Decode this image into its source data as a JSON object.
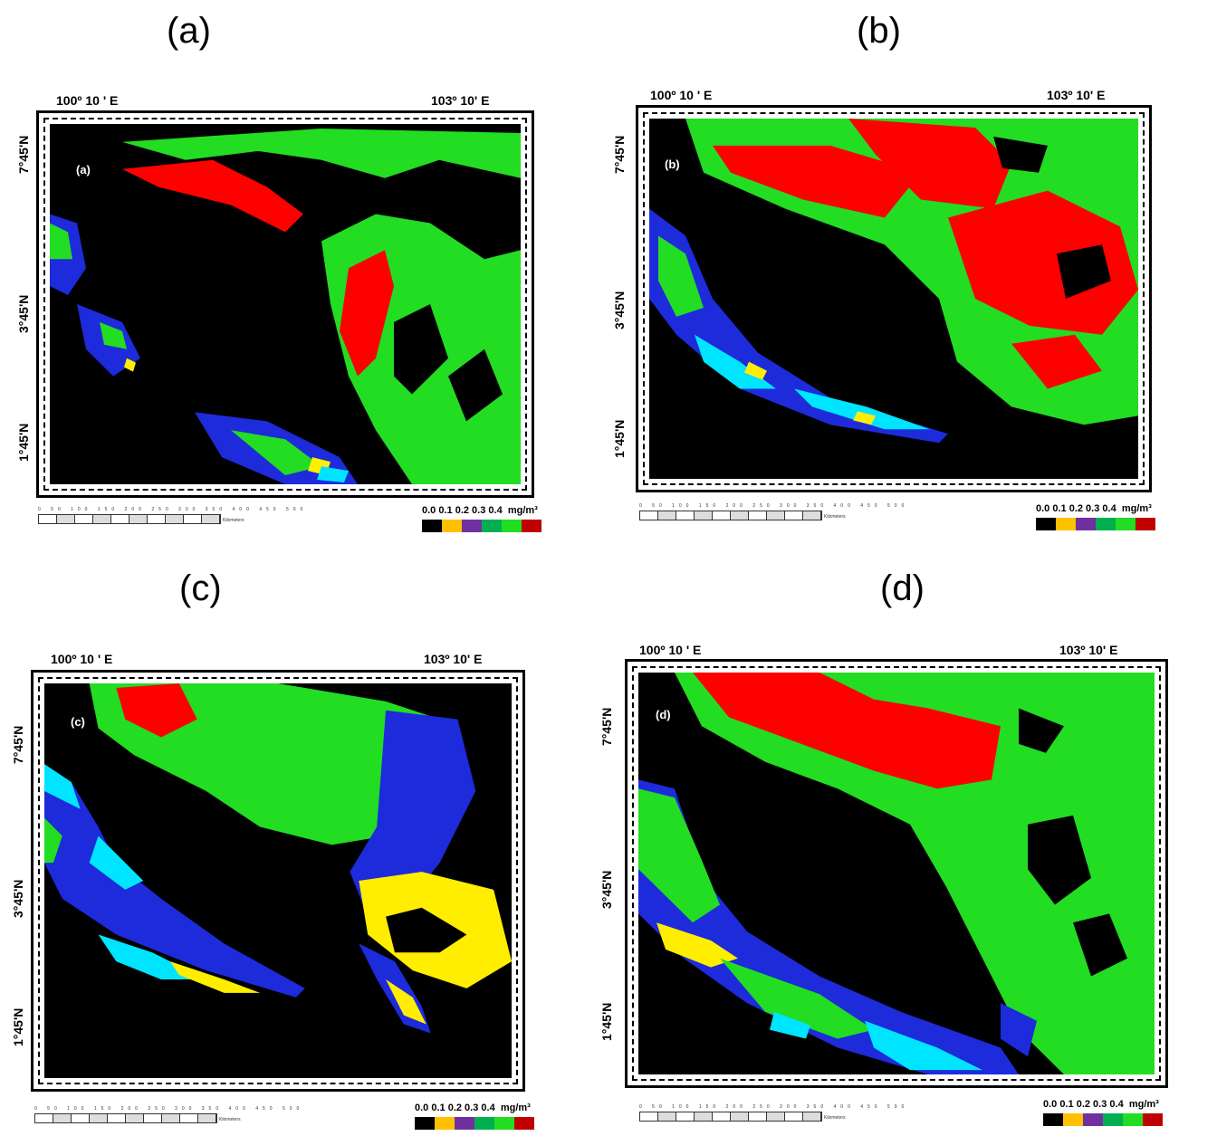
{
  "panels": [
    {
      "title": "(a)",
      "inner_label": "(a)",
      "lon_left": "100º 10 ' E",
      "lon_right": "103º 10'  E",
      "lat_top": "7°45'N",
      "lat_mid": "3°45'N",
      "lat_bottom": "1°45'N"
    },
    {
      "title": "(b)",
      "inner_label": "(b)",
      "lon_left": "100º 10 ' E",
      "lon_right": "103º 10'  E",
      "lat_top": "7°45'N",
      "lat_mid": "3°45'N",
      "lat_bottom": "1°45'N"
    },
    {
      "title": "(c)",
      "inner_label": "(c)",
      "lon_left": "100º 10 ' E",
      "lon_right": "103º 10'  E",
      "lat_top": "7°45'N",
      "lat_mid": "3°45'N",
      "lat_bottom": "1°45'N"
    },
    {
      "title": "(d)",
      "inner_label": "(d)",
      "lon_left": "100º 10 ' E",
      "lon_right": "103º 10'  E",
      "lat_top": "7°45'N",
      "lat_mid": "3°45'N",
      "lat_bottom": "1°45'N"
    }
  ],
  "scalebar": {
    "ticks": "0 50 100 150 200 250 300 350 400 450 500",
    "unit": "Kilometers"
  },
  "legend": {
    "labels": "0.0  0.1  0.2  0.3 0.4",
    "unit": "mg/m³",
    "colors": [
      "#000000",
      "#ffc000",
      "#7030a0",
      "#00b050",
      "#22dd22",
      "#c00000"
    ]
  }
}
